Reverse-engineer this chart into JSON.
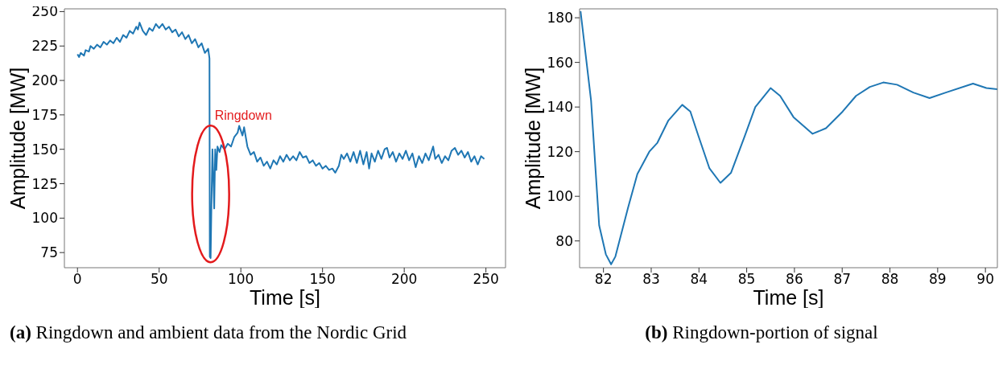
{
  "chart_data": [
    {
      "type": "line",
      "xlabel": "Time [s]",
      "ylabel": "Amplitude [MW]",
      "color": "#1f77b4",
      "xlim": [
        -8,
        262
      ],
      "ylim": [
        64,
        252
      ],
      "xticks": [
        0,
        50,
        100,
        150,
        200,
        250
      ],
      "yticks": [
        75,
        100,
        125,
        150,
        175,
        200,
        225,
        250
      ],
      "x": [
        0,
        1,
        2,
        4,
        5,
        7,
        8,
        10,
        12,
        14,
        16,
        18,
        20,
        22,
        24,
        26,
        28,
        30,
        32,
        34,
        36,
        37,
        38,
        40,
        42,
        44,
        46,
        48,
        50,
        52,
        54,
        56,
        58,
        60,
        62,
        64,
        66,
        68,
        70,
        72,
        74,
        76,
        78,
        80,
        80.8,
        81,
        81.5,
        82,
        82.6,
        83.3,
        83.7,
        84.3,
        85,
        85.7,
        87,
        88,
        90,
        92,
        94,
        96,
        98,
        99,
        101,
        102,
        104,
        106,
        108,
        110,
        112,
        114,
        116,
        118,
        120,
        122,
        124,
        126,
        128,
        130,
        132,
        134,
        136,
        138,
        140,
        142,
        144,
        146,
        148,
        150,
        152,
        154,
        156,
        157.8,
        160,
        161.5,
        163,
        165,
        167,
        169,
        171,
        173,
        175,
        177,
        178.5,
        180,
        182,
        184,
        186,
        188,
        189.5,
        191,
        193,
        195,
        197,
        199,
        201,
        203,
        205,
        207,
        209,
        211,
        213,
        215,
        217.7,
        219,
        221,
        223,
        225,
        227,
        229,
        231,
        233,
        235,
        237,
        239,
        241,
        243,
        245,
        247,
        249
      ],
      "values": [
        219,
        217,
        220,
        218,
        222,
        221,
        225,
        223,
        226,
        224,
        228,
        226,
        229,
        227,
        231,
        228,
        233,
        231,
        236,
        234,
        239,
        237,
        242,
        236,
        233,
        238,
        236,
        241,
        238,
        241,
        237,
        239,
        235,
        237,
        232,
        235,
        230,
        233,
        227,
        230,
        224,
        227,
        220,
        223,
        216,
        72,
        71,
        110,
        150,
        125,
        107,
        150,
        135,
        152,
        148,
        153,
        150,
        154,
        152,
        159,
        162,
        167,
        160,
        166,
        152,
        146,
        148,
        141,
        144,
        138,
        141,
        136,
        142,
        139,
        145,
        141,
        146,
        142,
        145,
        142,
        148,
        144,
        145,
        140,
        142,
        138,
        140,
        136,
        138,
        135,
        136,
        133,
        138,
        146,
        143,
        147,
        141,
        148,
        140,
        149,
        139,
        148,
        136,
        147,
        141,
        149,
        143,
        150,
        151,
        144,
        148,
        141,
        147,
        143,
        149,
        142,
        147,
        137,
        145,
        140,
        147,
        142,
        152,
        143,
        146,
        140,
        145,
        142,
        149,
        151,
        146,
        149,
        144,
        148,
        141,
        145,
        139,
        145,
        143
      ],
      "annotations": [
        {
          "text": "Ringdown",
          "x": 82,
          "y": 169
        },
        "(a) Ringdown and ambient data from the Nordic Grid"
      ]
    },
    {
      "type": "line",
      "xlabel": "Time [s]",
      "ylabel": "Amplitude [MW]",
      "color": "#1f77b4",
      "xlim": [
        81.5,
        90.25
      ],
      "ylim": [
        68,
        184
      ],
      "xticks": [
        82,
        83,
        84,
        85,
        86,
        87,
        88,
        89,
        90
      ],
      "yticks": [
        80,
        100,
        120,
        140,
        160,
        180
      ],
      "x": [
        81.52,
        81.74,
        81.91,
        82.05,
        82.16,
        82.25,
        82.51,
        82.71,
        82.96,
        83.13,
        83.36,
        83.65,
        83.82,
        83.99,
        84.22,
        84.45,
        84.67,
        84.96,
        85.18,
        85.5,
        85.7,
        85.98,
        86.38,
        86.66,
        87.01,
        87.29,
        87.58,
        87.86,
        88.15,
        88.49,
        88.83,
        89.17,
        89.74,
        90.02,
        90.25
      ],
      "values": [
        183,
        143,
        87,
        74,
        69.5,
        73,
        94.5,
        110,
        120,
        124,
        134,
        141,
        138,
        127,
        112.5,
        106,
        110.5,
        127,
        140,
        148.5,
        145,
        135.5,
        128,
        130.5,
        138,
        145,
        149,
        151,
        150,
        146.5,
        144,
        146.5,
        150.5,
        148.5,
        148
      ],
      "annotations": [
        "(b) Ringdown-portion of signal"
      ]
    }
  ]
}
